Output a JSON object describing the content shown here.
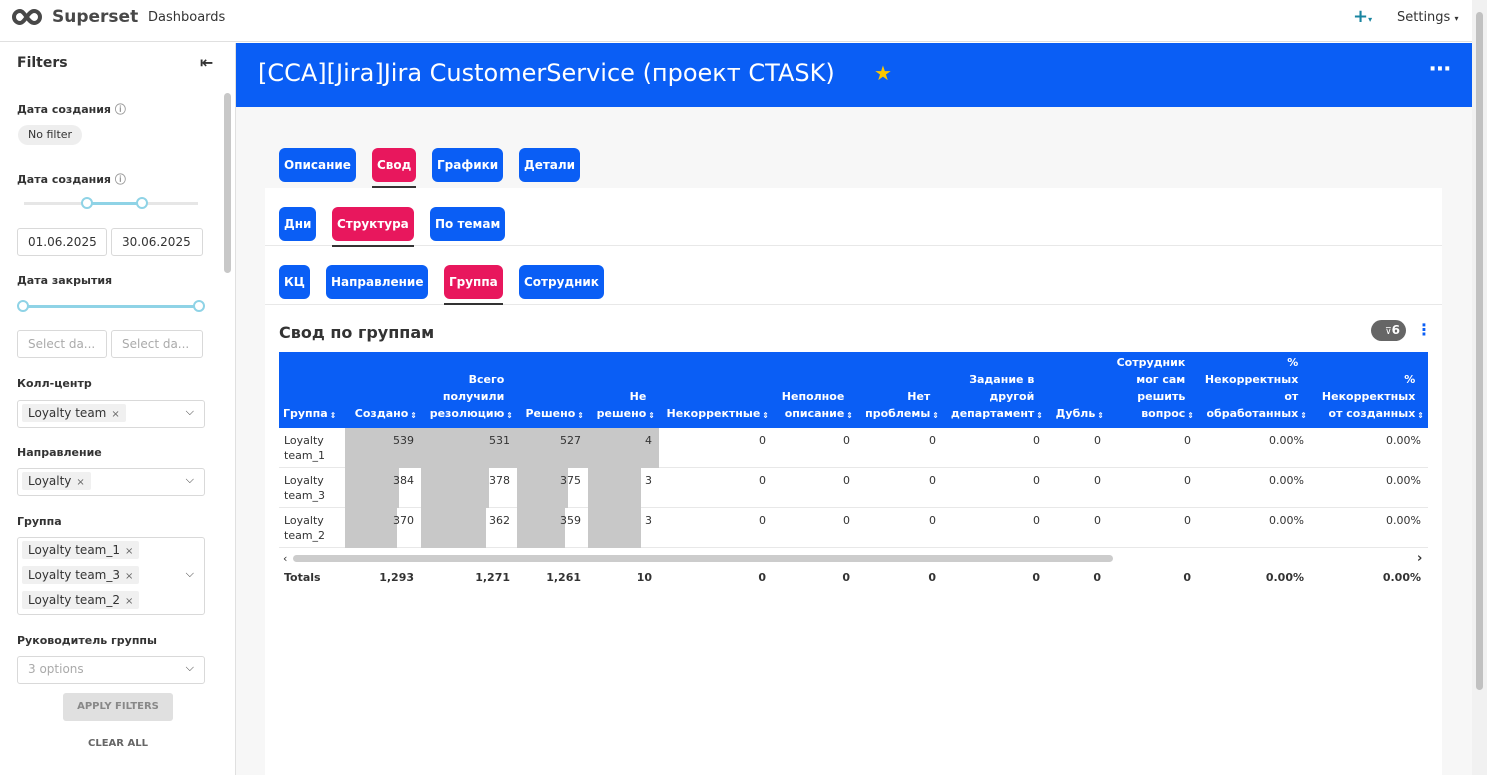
{
  "navbar": {
    "brand": "Superset",
    "menu": "Dashboards",
    "settings": "Settings"
  },
  "filters": {
    "title": "Filters",
    "created_label": "Дата создания",
    "created_value": "No filter",
    "created_range_label": "Дата создания",
    "created_from": "01.06.2025",
    "created_to": "30.06.2025",
    "closed_label": "Дата закрытия",
    "closed_from": "Select da...",
    "closed_to": "Select da...",
    "call_center_label": "Колл-центр",
    "call_center_tags": [
      "Loyalty team"
    ],
    "direction_label": "Направление",
    "direction_tags": [
      "Loyalty"
    ],
    "group_label": "Группа",
    "group_tags": [
      "Loyalty team_1",
      "Loyalty team_3",
      "Loyalty team_2"
    ],
    "lead_label": "Руководитель группы",
    "lead_placeholder": "3 options",
    "apply": "APPLY FILTERS",
    "clear": "CLEAR ALL"
  },
  "dashboard": {
    "title": "[CCA][Jira]Jira CustomerService (проект CTASK)",
    "tabs": [
      "Описание",
      "Свод",
      "Графики",
      "Детали"
    ],
    "subtabs": [
      "Дни",
      "Структура",
      "По темам"
    ],
    "subsubtabs": [
      "КЦ",
      "Направление",
      "Группа",
      "Сотрудник"
    ]
  },
  "chart": {
    "title": "Свод по группам",
    "filter_count": 6,
    "columns": [
      "Группа",
      "Создано",
      "Всего получили резолюцию",
      "Решено",
      "Не решено",
      "Некорректные",
      "Неполное описание",
      "Нет проблемы",
      "Задание в другой департамент",
      "Дубль",
      "Сотрудник мог сам решить вопрос",
      "% Некорректных от обработанных",
      "% Некорректных от созданных"
    ],
    "rows": [
      [
        "Loyalty team_1",
        539,
        531,
        527,
        4,
        0,
        0,
        0,
        0,
        0,
        0,
        "0.00%",
        "0.00%"
      ],
      [
        "Loyalty team_3",
        384,
        378,
        375,
        3,
        0,
        0,
        0,
        0,
        0,
        0,
        "0.00%",
        "0.00%"
      ],
      [
        "Loyalty team_2",
        370,
        362,
        359,
        3,
        0,
        0,
        0,
        0,
        0,
        0,
        "0.00%",
        "0.00%"
      ]
    ],
    "totals": [
      "Totals",
      "1,293",
      "1,271",
      "1,261",
      10,
      0,
      0,
      0,
      0,
      0,
      0,
      "0.00%",
      "0.00%"
    ]
  }
}
